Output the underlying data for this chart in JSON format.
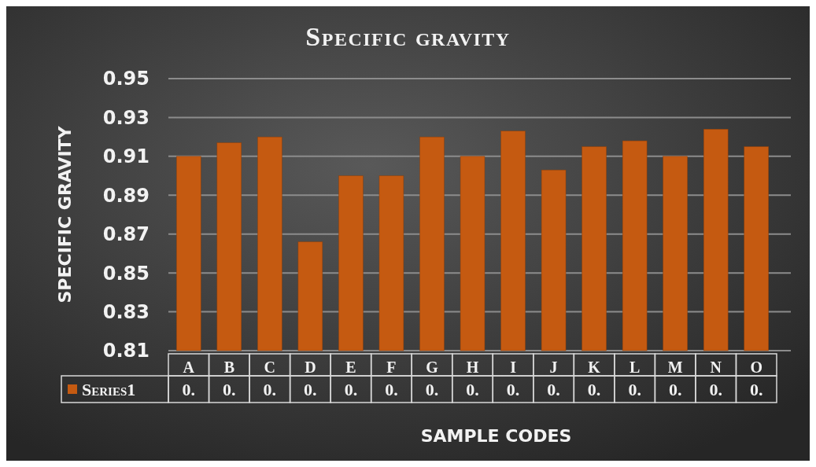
{
  "chart_data": {
    "type": "bar",
    "title": "Specific gravity",
    "xlabel": "SAMPLE CODES",
    "ylabel": "SPECIFIC GRAVITY",
    "categories": [
      "A",
      "B",
      "C",
      "D",
      "E",
      "F",
      "G",
      "H",
      "I",
      "J",
      "K",
      "L",
      "M",
      "N",
      "O"
    ],
    "series": [
      {
        "name": "Series1",
        "color": "#c55a11",
        "values": [
          0.91,
          0.917,
          0.92,
          0.866,
          0.9,
          0.9,
          0.92,
          0.91,
          0.923,
          0.903,
          0.915,
          0.918,
          0.91,
          0.924,
          0.915
        ]
      }
    ],
    "annotations": [
      "0.",
      "0.",
      "0.",
      "0.",
      "0.",
      "0.",
      "0.",
      "0.",
      "0.",
      "0.",
      "0.",
      "0.",
      "0.",
      "0.",
      "0."
    ],
    "ylim": [
      0.81,
      0.95
    ],
    "yticks": [
      0.81,
      0.83,
      0.85,
      0.87,
      0.89,
      0.91,
      0.93,
      0.95
    ],
    "grid": "y",
    "legend": "bottom"
  }
}
